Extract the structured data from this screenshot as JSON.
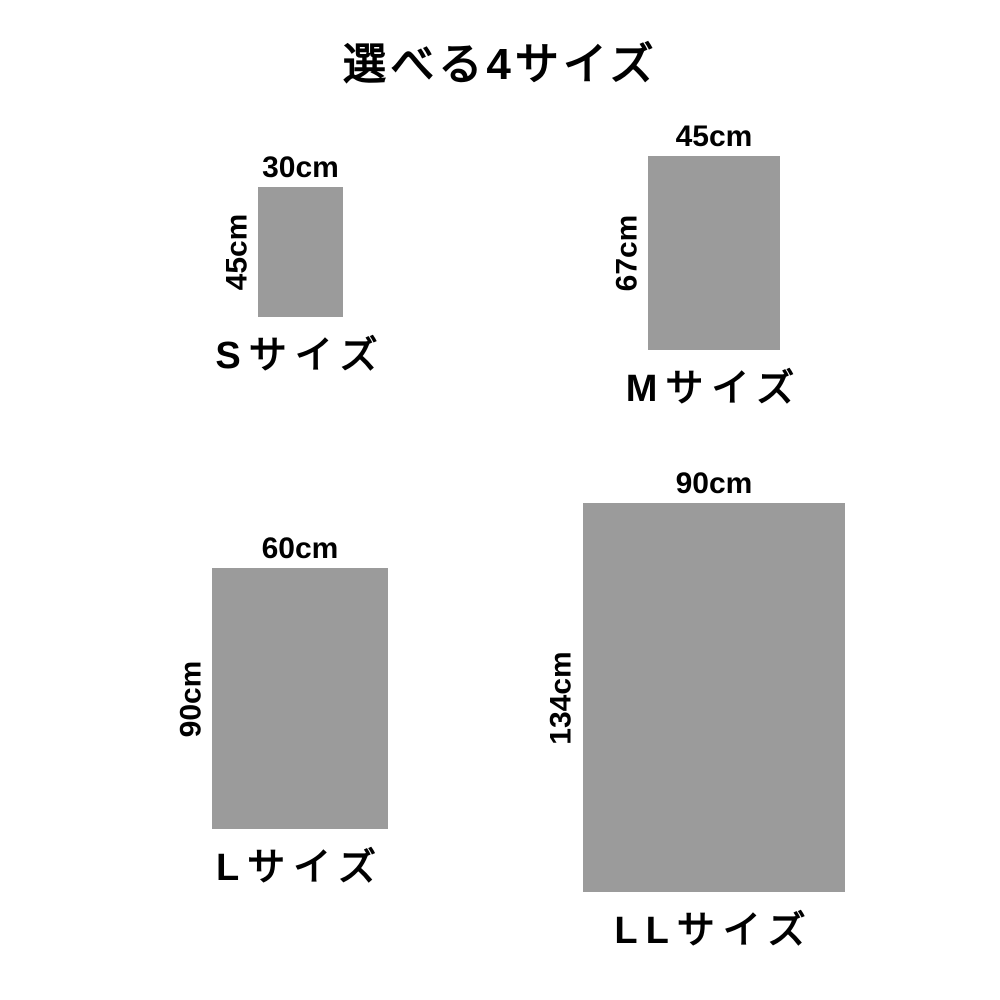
{
  "page": {
    "title": "選べる4サイズ",
    "background_color": "#ffffff"
  },
  "colors": {
    "rectangle_fill": "#9b9b9b",
    "text": "#000000"
  },
  "sizes": [
    {
      "id": "s",
      "name": "Sサイズ",
      "width_cm": 30,
      "height_cm": 45,
      "width_label": "30cm",
      "height_label": "45cm"
    },
    {
      "id": "m",
      "name": "Mサイズ",
      "width_cm": 45,
      "height_cm": 67,
      "width_label": "45cm",
      "height_label": "67cm"
    },
    {
      "id": "l",
      "name": "Lサイズ",
      "width_cm": 60,
      "height_cm": 90,
      "width_label": "60cm",
      "height_label": "90cm"
    },
    {
      "id": "ll",
      "name": "LLサイズ",
      "width_cm": 90,
      "height_cm": 134,
      "width_label": "90cm",
      "height_label": "134cm"
    }
  ]
}
